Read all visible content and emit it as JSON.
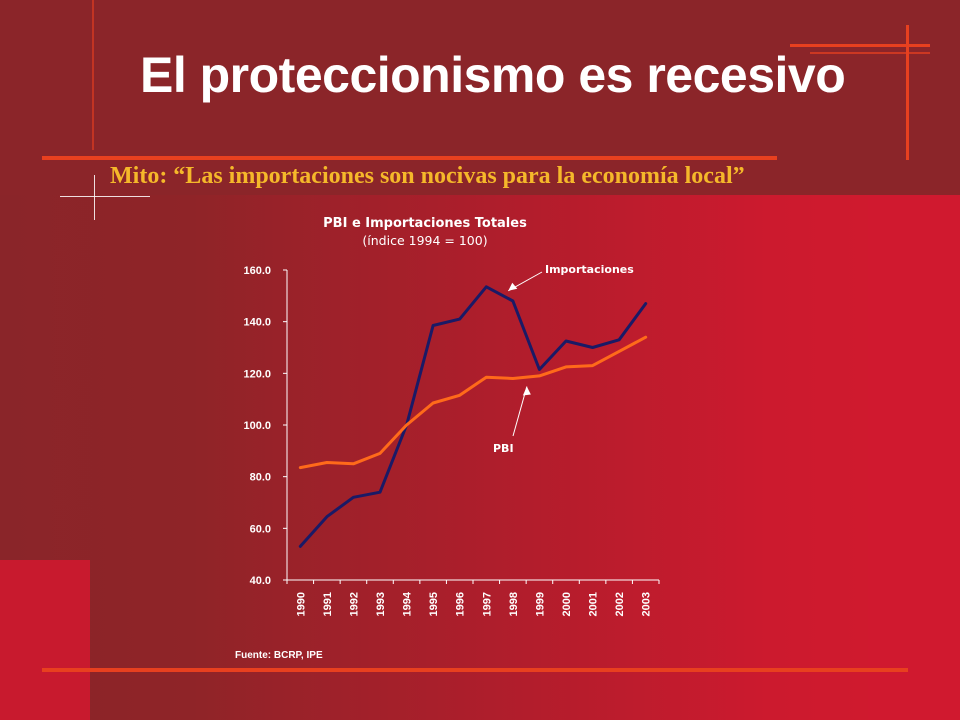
{
  "slide": {
    "title": "El proteccionismo es recesivo",
    "subtitle": "Mito: “Las importaciones son nocivas para la economía local”",
    "source": "Fuente: BCRP, IPE"
  },
  "colors": {
    "title": "#ffffff",
    "subtitle": "#f5b82a",
    "accent_line": "#e8401f",
    "importaciones": "#1a1a66",
    "pbi": "#ff6a1a"
  },
  "chart_data": {
    "type": "line",
    "title": "PBI e Importaciones Totales",
    "subtitle": "(índice 1994 = 100)",
    "x": [
      "1990",
      "1991",
      "1992",
      "1993",
      "1994",
      "1995",
      "1996",
      "1997",
      "1998",
      "1999",
      "2000",
      "2001",
      "2002",
      "2003"
    ],
    "ylim": [
      40,
      160
    ],
    "yticks": [
      "40.0",
      "60.0",
      "80.0",
      "100.0",
      "120.0",
      "140.0",
      "160.0"
    ],
    "grid": false,
    "series": [
      {
        "name": "Importaciones",
        "color": "#1a1a66",
        "values": [
          53,
          64.5,
          72,
          74,
          100,
          138.5,
          141,
          153.5,
          148,
          121.5,
          132.5,
          130,
          133,
          147
        ]
      },
      {
        "name": "PBI",
        "color": "#ff6a1a",
        "values": [
          83.5,
          85.5,
          85,
          89,
          100,
          108.5,
          111.5,
          118.5,
          118,
          119,
          122.5,
          123,
          128.5,
          134
        ]
      }
    ],
    "annotations": [
      {
        "label": "Importaciones",
        "series": 0,
        "year": "1997"
      },
      {
        "label": "PBI",
        "series": 1,
        "year": "1998"
      }
    ]
  }
}
